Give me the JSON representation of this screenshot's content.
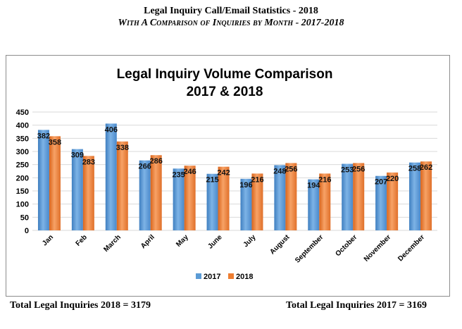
{
  "header": {
    "title": "Legal Inquiry Call/Email Statistics - 2018",
    "subtitle": "With A Comparison of Inquiries by Month - 2017-2018"
  },
  "footer": {
    "total_2018": "Total Legal Inquiries 2018 = 3179",
    "total_2017": "Total Legal Inquiries 2017 = 3169"
  },
  "chart_data": {
    "type": "bar",
    "title": "Legal Inquiry Volume Comparison",
    "subtitle": "2017 & 2018",
    "categories": [
      "Jan",
      "Feb",
      "March",
      "April",
      "May",
      "June",
      "July",
      "August",
      "September",
      "October",
      "November",
      "December"
    ],
    "series": [
      {
        "name": "2017",
        "color": "#5b9bd5",
        "values": [
          382,
          309,
          406,
          266,
          235,
          215,
          196,
          248,
          194,
          253,
          207,
          258
        ]
      },
      {
        "name": "2018",
        "color": "#ed7d31",
        "values": [
          358,
          283,
          338,
          286,
          246,
          242,
          216,
          256,
          216,
          256,
          220,
          262
        ]
      }
    ],
    "yticks": [
      0,
      50,
      100,
      150,
      200,
      250,
      300,
      350,
      400,
      450
    ],
    "ylim": [
      0,
      450
    ],
    "grid": true,
    "legend_position": "bottom"
  }
}
